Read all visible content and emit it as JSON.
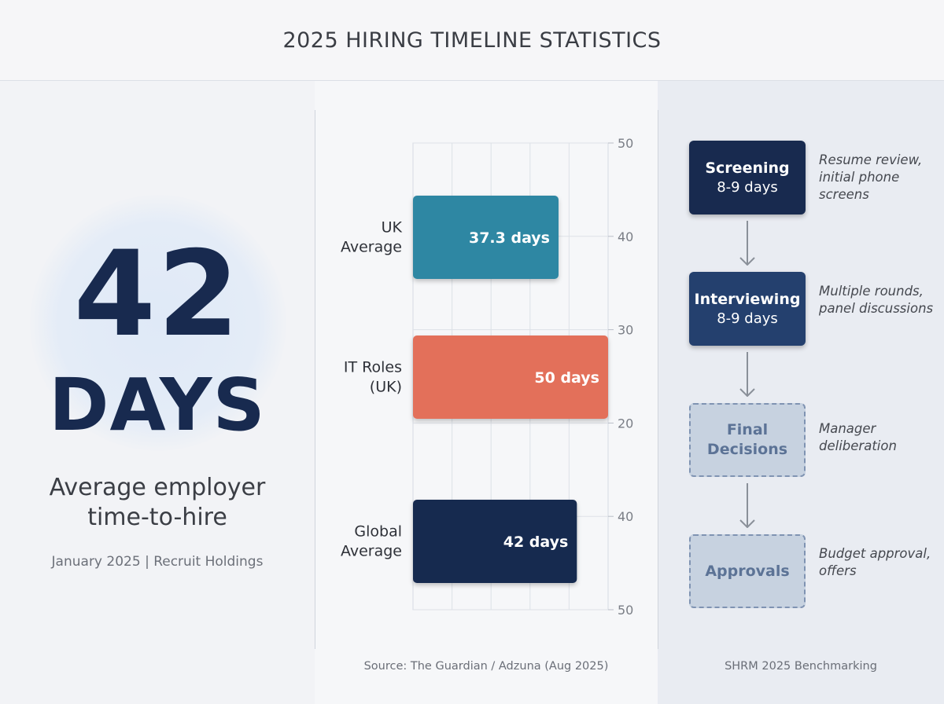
{
  "header": {
    "title": "2025 HIRING TIMELINE STATISTICS"
  },
  "hero": {
    "number": "42",
    "unit": "DAYS",
    "subtitle_line1": "Average employer",
    "subtitle_line2": "time-to-hire",
    "source": "January 2025 | Recruit Holdings"
  },
  "chart_data": {
    "type": "bar",
    "orientation": "horizontal",
    "categories": [
      [
        "UK",
        "Average"
      ],
      [
        "IT Roles",
        "(UK)"
      ],
      [
        "Global",
        "Average"
      ]
    ],
    "values": [
      37.3,
      50,
      42
    ],
    "value_labels": [
      "37.3 days",
      "50 days",
      "42 days"
    ],
    "colors": [
      "#2f87a3",
      "#e3705a",
      "#182a4f"
    ],
    "axis_tick_labels": [
      "50",
      "40",
      "30",
      "20",
      "40",
      "50"
    ],
    "grid": true,
    "source": "Source: The Guardian / Adzuna (Aug 2025)"
  },
  "process": {
    "stages": [
      {
        "title": "Screening",
        "duration": "8-9 days",
        "note": "Resume review, initial phone screens",
        "style": "solid-dark"
      },
      {
        "title": "Interviewing",
        "duration": "8-9 days",
        "note": "Multiple rounds, panel discussions",
        "style": "solid-mid"
      },
      {
        "title": "Final Decisions",
        "duration": "",
        "note": "Manager deliberation",
        "style": "dashed"
      },
      {
        "title": "Approvals",
        "duration": "",
        "note": "Budget approval, offers",
        "style": "dashed"
      }
    ],
    "source": "SHRM 2025 Benchmarking",
    "arrow_color": "#8a9099"
  }
}
